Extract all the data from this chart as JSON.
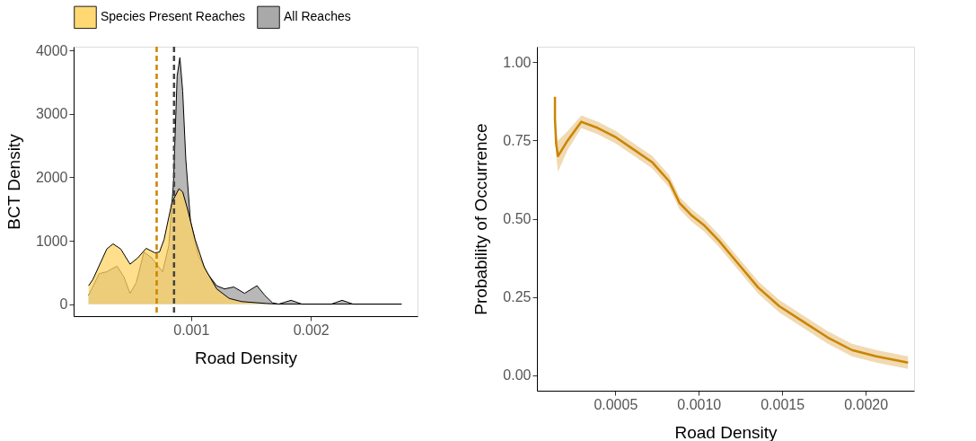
{
  "chart_data": [
    {
      "type": "area",
      "xlabel": "Road Density",
      "ylabel": "BCT Density",
      "legend": "top",
      "grid": false,
      "xlim": [
        2e-05,
        0.00289
      ],
      "xticks": [
        {
          "value": 0.001,
          "label": "0.001"
        },
        {
          "value": 0.002,
          "label": "0.002"
        }
      ],
      "ylim": [
        -190,
        4060
      ],
      "yticks": [
        {
          "value": 0,
          "label": "0"
        },
        {
          "value": 1000,
          "label": "1000"
        },
        {
          "value": 2000,
          "label": "2000"
        },
        {
          "value": 3000,
          "label": "3000"
        },
        {
          "value": 4000,
          "label": "4000"
        }
      ],
      "series": [
        {
          "name": "Species Present Reaches",
          "color": "#ffd466",
          "x": [
            0.000145,
            0.000181,
            0.000297,
            0.000349,
            0.000413,
            0.000491,
            0.000556,
            0.000625,
            0.000698,
            0.000736,
            0.000775,
            0.00084,
            0.000899,
            0.00093,
            0.000969,
            0.001034,
            0.001111,
            0.001214,
            0.001318,
            0.001421,
            0.001628,
            0.001731,
            0.002757
          ],
          "values": [
            290,
            390,
            870,
            950,
            870,
            630,
            730,
            880,
            810,
            820,
            1020,
            1600,
            1820,
            1770,
            1510,
            1020,
            580,
            240,
            90,
            40,
            10,
            0,
            0
          ]
        },
        {
          "name": "All Reaches",
          "color": "#a0a0a0",
          "x": [
            0.000145,
            0.000233,
            0.000297,
            0.000382,
            0.000439,
            0.000491,
            0.000543,
            0.000607,
            0.000672,
            0.000762,
            0.000814,
            0.000853,
            0.000884,
            0.000907,
            0.00093,
            0.000956,
            0.000995,
            0.001059,
            0.001137,
            0.001214,
            0.001279,
            0.001357,
            0.001447,
            0.00155,
            0.001615,
            0.00168,
            0.001731,
            0.001835,
            0.001925,
            0.002171,
            0.002261,
            0.002351,
            0.002757
          ],
          "values": [
            140,
            480,
            510,
            600,
            430,
            170,
            340,
            820,
            730,
            510,
            920,
            1900,
            3600,
            3890,
            3360,
            2290,
            1310,
            780,
            480,
            290,
            240,
            270,
            170,
            290,
            140,
            20,
            0,
            60,
            0,
            0,
            60,
            0,
            0
          ]
        }
      ],
      "ref_lines": [
        {
          "axis": "x",
          "value": 0.000713,
          "color": "#cc8400",
          "line_style": "dashed"
        },
        {
          "axis": "x",
          "value": 0.000858,
          "color": "#444444",
          "line_style": "dashed"
        }
      ]
    },
    {
      "type": "line",
      "xlabel": "Road Density",
      "ylabel": "Probability of Occurrence",
      "grid": false,
      "xlim": [
        3e-05,
        0.00229
      ],
      "xticks": [
        {
          "value": 0.0005,
          "label": "0.0005"
        },
        {
          "value": 0.001,
          "label": "0.0010"
        },
        {
          "value": 0.0015,
          "label": "0.0015"
        },
        {
          "value": 0.002,
          "label": "0.0020"
        }
      ],
      "ylim": [
        -0.05,
        1.05
      ],
      "yticks": [
        {
          "value": 0,
          "label": "0.00"
        },
        {
          "value": 0.25,
          "label": "0.25"
        },
        {
          "value": 0.5,
          "label": "0.50"
        },
        {
          "value": 0.75,
          "label": "0.75"
        },
        {
          "value": 1,
          "label": "1.00"
        }
      ],
      "series": [
        {
          "color": "#cc8400",
          "x": [
            0.000138,
            0.000138,
            0.000145,
            0.000156,
            0.000214,
            0.000296,
            0.000395,
            0.000504,
            0.000613,
            0.000722,
            0.000822,
            0.000885,
            0.000958,
            0.00103,
            0.00112,
            0.00123,
            0.001356,
            0.001483,
            0.001628,
            0.001773,
            0.001918,
            0.002064,
            0.002254
          ],
          "values": [
            0.89,
            0.82,
            0.74,
            0.7,
            0.75,
            0.81,
            0.79,
            0.76,
            0.72,
            0.68,
            0.62,
            0.55,
            0.51,
            0.48,
            0.43,
            0.36,
            0.28,
            0.22,
            0.17,
            0.12,
            0.08,
            0.06,
            0.04
          ],
          "lower": [
            0.86,
            0.79,
            0.7,
            0.65,
            0.72,
            0.79,
            0.77,
            0.74,
            0.7,
            0.66,
            0.6,
            0.53,
            0.49,
            0.46,
            0.41,
            0.34,
            0.26,
            0.2,
            0.15,
            0.1,
            0.06,
            0.04,
            0.02
          ],
          "upper": [
            0.91,
            0.85,
            0.78,
            0.75,
            0.78,
            0.83,
            0.81,
            0.78,
            0.74,
            0.7,
            0.64,
            0.57,
            0.53,
            0.5,
            0.45,
            0.38,
            0.3,
            0.24,
            0.19,
            0.14,
            0.1,
            0.08,
            0.06
          ]
        }
      ]
    }
  ]
}
